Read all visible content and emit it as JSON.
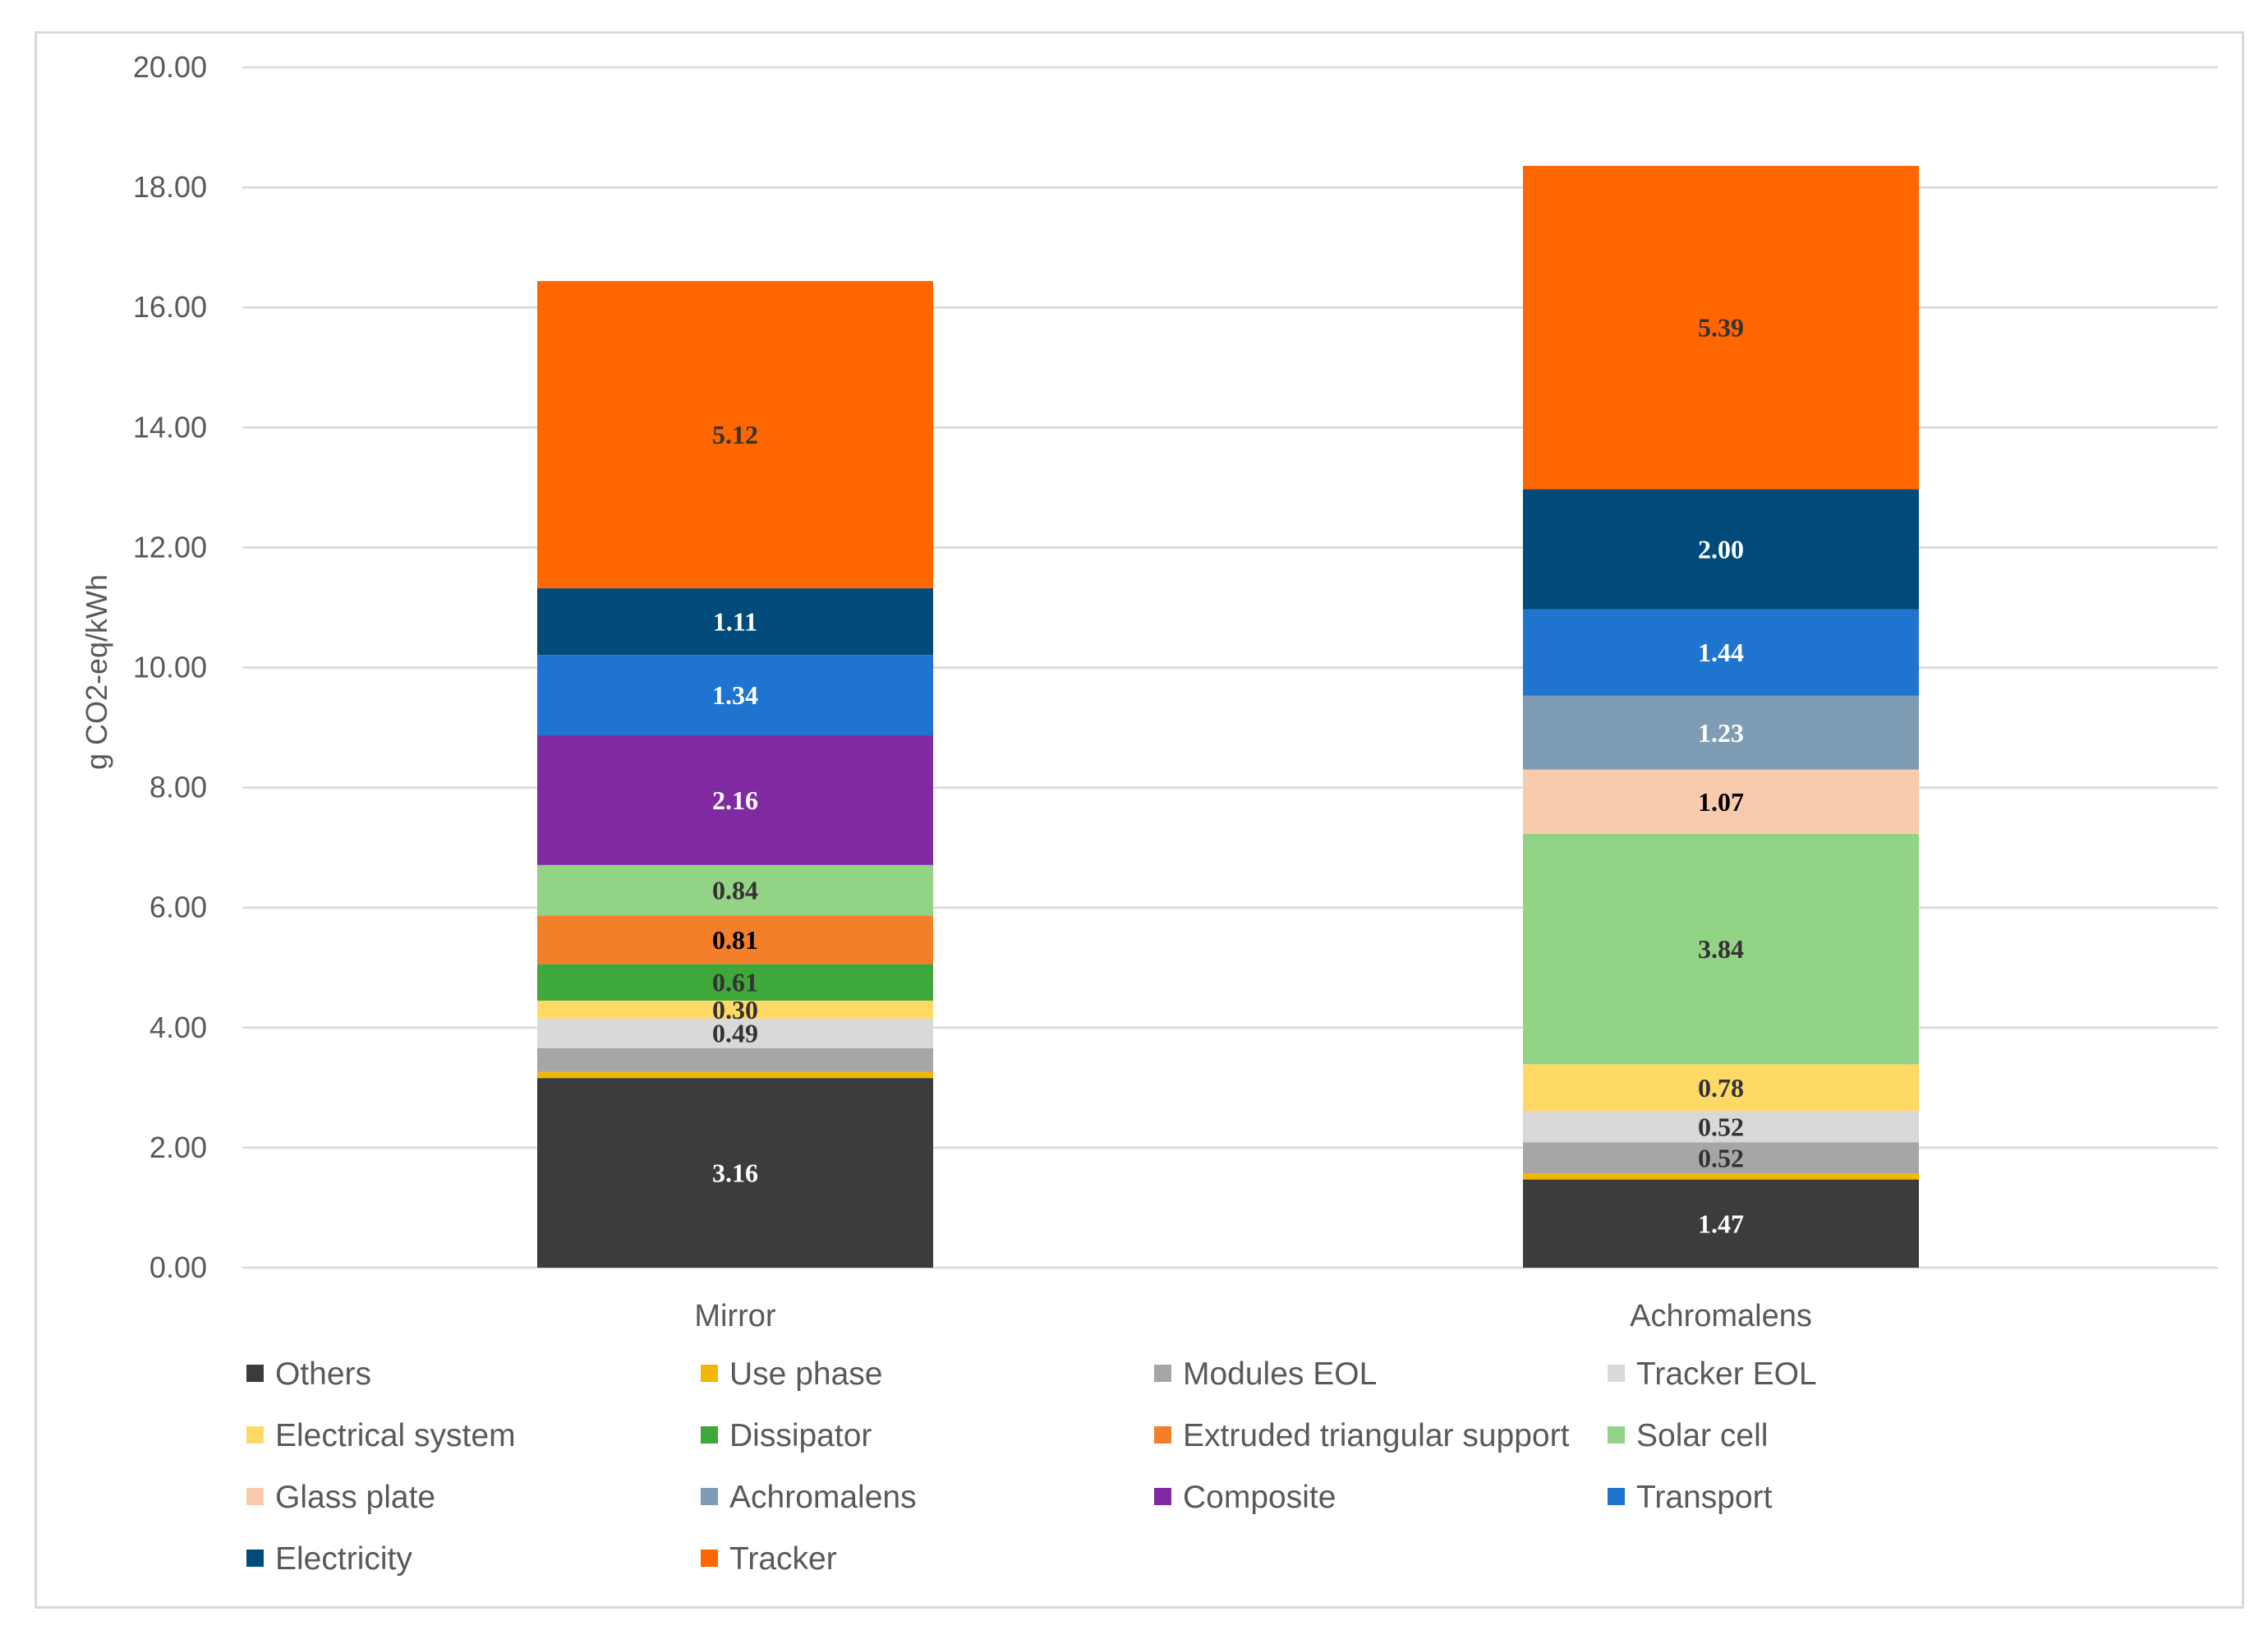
{
  "chart_data": {
    "type": "bar",
    "stacked": true,
    "categories": [
      "Mirror",
      "Achromalens"
    ],
    "ylabel": "g CO2-eq/kWh",
    "ylim": [
      0,
      20
    ],
    "yticks": [
      "0.00",
      "2.00",
      "4.00",
      "6.00",
      "8.00",
      "10.00",
      "12.00",
      "14.00",
      "16.00",
      "18.00",
      "20.00"
    ],
    "grid": true,
    "legend_position": "bottom",
    "series": [
      {
        "name": "Others",
        "color": "#3c3c3c",
        "values": [
          3.16,
          1.47
        ],
        "labels": [
          "3.16",
          "1.47"
        ],
        "label_color": "#ffffff"
      },
      {
        "name": "Use phase",
        "color": "#f2b700",
        "values": [
          0.1,
          0.1
        ],
        "labels": [
          "",
          ""
        ],
        "label_color": "#333333"
      },
      {
        "name": "Modules EOL",
        "color": "#a6a6a6",
        "values": [
          0.4,
          0.52
        ],
        "labels": [
          "",
          "0.52"
        ],
        "label_color": "#333333"
      },
      {
        "name": "Tracker EOL",
        "color": "#d9d9d9",
        "values": [
          0.49,
          0.52
        ],
        "labels": [
          "0.49",
          "0.52"
        ],
        "label_color": "#333333"
      },
      {
        "name": "Electrical system",
        "color": "#ffd966",
        "values": [
          0.3,
          0.78
        ],
        "labels": [
          "0.30",
          "0.78"
        ],
        "label_color": "#333333"
      },
      {
        "name": "Dissipator",
        "color": "#3ea83a",
        "values": [
          0.61,
          0
        ],
        "labels": [
          "0.61",
          ""
        ],
        "label_color": "#333333"
      },
      {
        "name": "Extruded triangular support",
        "color": "#f47f2a",
        "values": [
          0.81,
          0
        ],
        "labels": [
          "0.81",
          ""
        ],
        "label_color": "#000000"
      },
      {
        "name": "Solar cell",
        "color": "#93d385",
        "values": [
          0.84,
          3.84
        ],
        "labels": [
          "0.84",
          "3.84"
        ],
        "label_color": "#333333"
      },
      {
        "name": "Glass plate",
        "color": "#f8cbad",
        "values": [
          0,
          1.07
        ],
        "labels": [
          "",
          "1.07"
        ],
        "label_color": "#000000"
      },
      {
        "name": "Achromalens",
        "color": "#7f9cb5",
        "values": [
          0,
          1.23
        ],
        "labels": [
          "",
          "1.23"
        ],
        "label_color": "#ffffff"
      },
      {
        "name": "Composite",
        "color": "#7f2aa3",
        "values": [
          2.16,
          0
        ],
        "labels": [
          "2.16",
          ""
        ],
        "label_color": "#ffffff"
      },
      {
        "name": "Transport",
        "color": "#1f74cf",
        "values": [
          1.34,
          1.44
        ],
        "labels": [
          "1.34",
          "1.44"
        ],
        "label_color": "#ffffff"
      },
      {
        "name": "Electricity",
        "color": "#004b7a",
        "values": [
          1.11,
          2.0
        ],
        "labels": [
          "1.11",
          "2.00"
        ],
        "label_color": "#ffffff"
      },
      {
        "name": "Tracker",
        "color": "#ff6600",
        "values": [
          5.12,
          5.39
        ],
        "labels": [
          "5.12",
          "5.39"
        ],
        "label_color": "#333333"
      }
    ]
  }
}
